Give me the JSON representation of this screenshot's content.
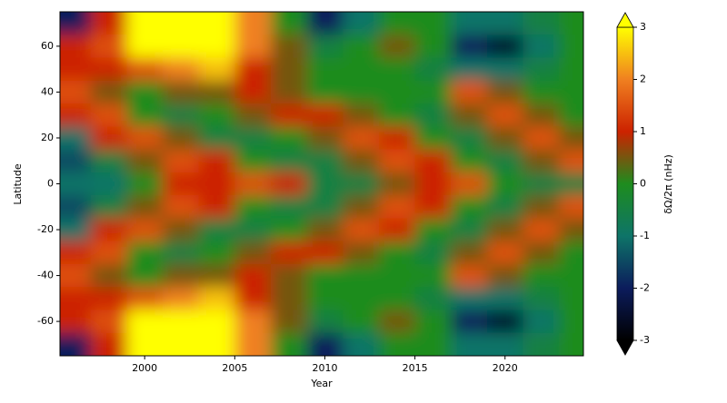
{
  "chart_data": {
    "type": "heatmap",
    "xlabel": "Year",
    "ylabel": "Latitude",
    "colorbar_label": "δΩ/2π (nHz)",
    "xlim": [
      1995.3,
      2024.35
    ],
    "ylim": [
      -75,
      75
    ],
    "xticks": [
      2000,
      2005,
      2010,
      2015,
      2020
    ],
    "yticks": [
      -60,
      -40,
      -20,
      0,
      20,
      40,
      60
    ],
    "clim": [
      -3,
      3
    ],
    "cticks": [
      -3,
      -2,
      -1,
      0,
      1,
      2,
      3
    ],
    "colormap": [
      "#000000",
      "#0c1c5c",
      "#0e7468",
      "#1e8c1e",
      "#cc2200",
      "#f08020",
      "#ffff00"
    ],
    "x": [
      1996,
      1998,
      2000,
      2002,
      2004,
      2006,
      2008,
      2010,
      2012,
      2014,
      2016,
      2018,
      2020,
      2022,
      2024
    ],
    "y": [
      70,
      60,
      50,
      40,
      30,
      20,
      10,
      0,
      -10,
      -20,
      -30,
      -40,
      -50,
      -60,
      -70
    ],
    "z": [
      [
        -2,
        1,
        3,
        3,
        3,
        2,
        0,
        -2,
        -1,
        0,
        0,
        -1,
        -1,
        -0.5,
        0
      ],
      [
        1,
        1.5,
        3,
        3,
        3,
        2,
        0.5,
        -0.5,
        0,
        0.5,
        0,
        -2,
        -2.5,
        -1,
        0
      ],
      [
        1,
        1,
        1.5,
        2,
        2.5,
        1,
        0.5,
        0,
        0,
        0,
        -0.5,
        -1,
        -1,
        -0.5,
        0
      ],
      [
        1.5,
        0.5,
        0,
        0.5,
        0.5,
        1,
        0.5,
        0,
        0,
        0,
        0,
        1.5,
        0.5,
        0,
        0
      ],
      [
        1,
        1.5,
        0,
        -0.5,
        0,
        0.5,
        1,
        1,
        0.5,
        0,
        -0.5,
        0.5,
        1.5,
        0.5,
        0
      ],
      [
        -1,
        1,
        1.5,
        0.5,
        -0.5,
        -0.5,
        0,
        0.5,
        1.5,
        1,
        0,
        -0.5,
        0.5,
        1.5,
        0.5
      ],
      [
        -1.5,
        -0.5,
        0.5,
        1.5,
        1,
        0,
        -0.5,
        -0.5,
        0.5,
        1.5,
        1,
        0,
        -0.5,
        0.5,
        1.5
      ],
      [
        -1,
        -1,
        0,
        1,
        1,
        1.5,
        1,
        -0.5,
        -0.5,
        0.5,
        1,
        1.5,
        0,
        -0.5,
        -0.5
      ],
      [
        -1.5,
        -0.5,
        0.5,
        1.5,
        1,
        0,
        -0.5,
        -0.5,
        0.5,
        1.5,
        1,
        0,
        -0.5,
        0.5,
        1.5
      ],
      [
        -1,
        1,
        1.5,
        0.5,
        -0.5,
        -0.5,
        0,
        0.5,
        1.5,
        1,
        0,
        -0.5,
        0.5,
        1.5,
        0.5
      ],
      [
        1,
        1.5,
        0,
        -0.5,
        0,
        0.5,
        1,
        1,
        0.5,
        0,
        -0.5,
        0.5,
        1.5,
        0.5,
        0
      ],
      [
        1.5,
        0.5,
        0,
        0.5,
        0.5,
        1,
        0.5,
        0,
        0,
        0,
        0,
        1.5,
        0.5,
        0,
        0
      ],
      [
        1,
        1,
        1.5,
        2,
        2.5,
        1,
        0.5,
        0,
        0,
        0,
        -0.5,
        -1,
        -1,
        -0.5,
        0
      ],
      [
        1,
        1.5,
        3,
        3,
        3,
        2,
        0.5,
        -0.5,
        0,
        0.5,
        0,
        -2,
        -2.5,
        -1,
        0
      ],
      [
        -2,
        1,
        3,
        3,
        3,
        2,
        0,
        -2,
        -1,
        0,
        0,
        -1,
        -1,
        -0.5,
        0
      ]
    ]
  }
}
